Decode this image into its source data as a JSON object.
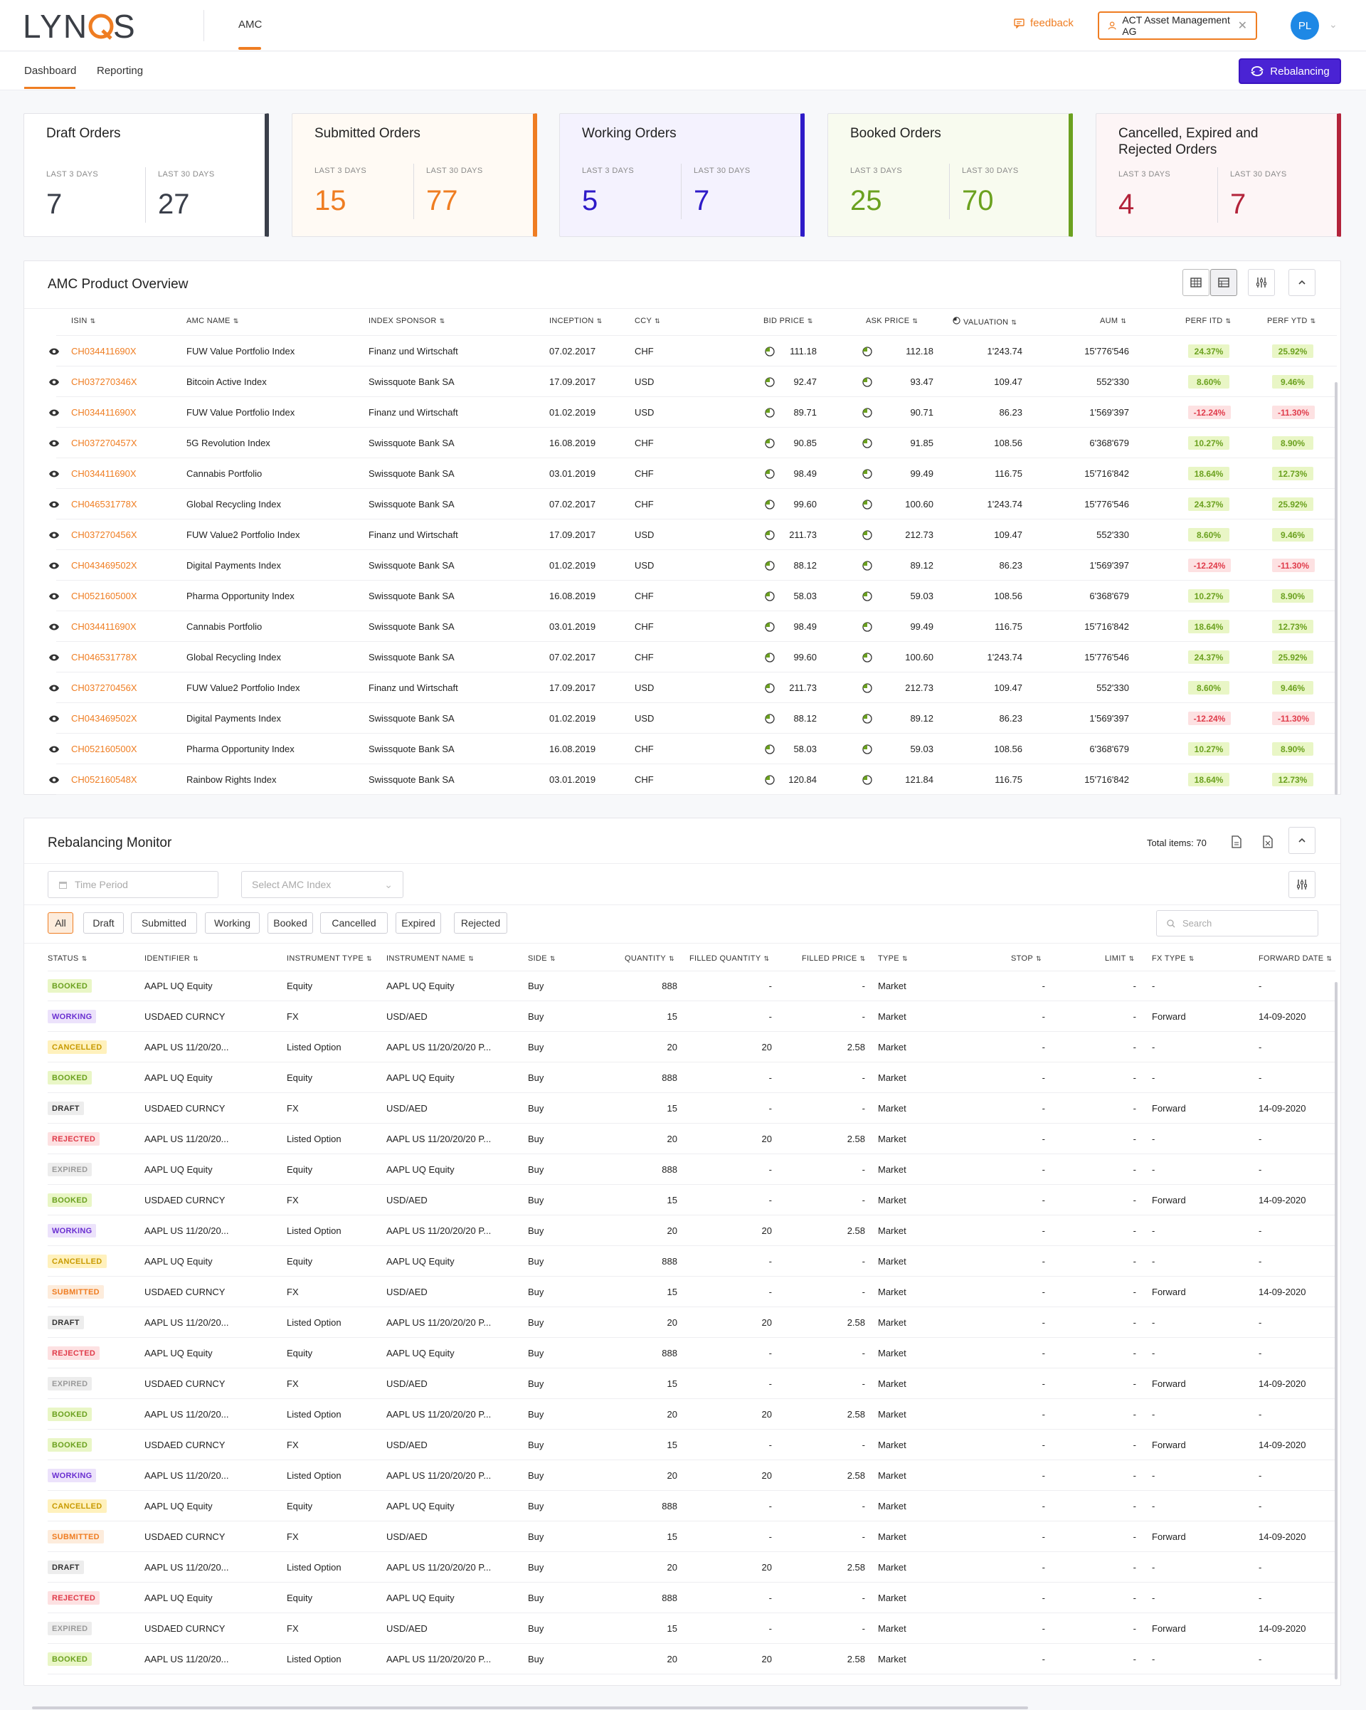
{
  "header": {
    "logo_text": "LYNQS",
    "nav": "AMC",
    "feedback": "feedback",
    "account": "ACT Asset Management AG",
    "avatar": "PL"
  },
  "subnav": {
    "tabs": [
      "Dashboard",
      "Reporting"
    ],
    "rebalancing_button": "Rebalancing"
  },
  "cards": [
    {
      "title": "Draft Orders",
      "label3": "LAST 3 DAYS",
      "label30": "LAST 30 DAYS",
      "v3": "7",
      "v30": "27",
      "color": "#3a3f4a"
    },
    {
      "title": "Submitted Orders",
      "label3": "LAST 3 DAYS",
      "label30": "LAST 30 DAYS",
      "v3": "15",
      "v30": "77",
      "color": "#ef7d22"
    },
    {
      "title": "Working Orders",
      "label3": "LAST 3 DAYS",
      "label30": "LAST 30 DAYS",
      "v3": "5",
      "v30": "7",
      "color": "#2e1bc8"
    },
    {
      "title": "Booked Orders",
      "label3": "LAST 3 DAYS",
      "label30": "LAST 30 DAYS",
      "v3": "25",
      "v30": "70",
      "color": "#6ba11f"
    },
    {
      "title": "Cancelled, Expired and Rejected Orders",
      "label3": "LAST 3 DAYS",
      "label30": "LAST 30 DAYS",
      "v3": "4",
      "v30": "7",
      "color": "#b3233a"
    }
  ],
  "overview": {
    "title": "AMC Product Overview",
    "columns": [
      "ISIN",
      "AMC NAME",
      "INDEX SPONSOR",
      "INCEPTION",
      "CCY",
      "BID PRICE",
      "ASK PRICE",
      "VALUATION",
      "AUM",
      "PERF ITD",
      "PERF YTD"
    ],
    "rows": [
      [
        "CH034411690X",
        "FUW Value Portfolio Index",
        "Finanz und Wirtschaft",
        "07.02.2017",
        "CHF",
        "111.18",
        "112.18",
        "1'243.74",
        "15'776'546",
        "24.37%",
        "25.92%"
      ],
      [
        "CH037270346X",
        "Bitcoin Active Index",
        "Swissquote Bank SA",
        "17.09.2017",
        "USD",
        "92.47",
        "93.47",
        "109.47",
        "552'330",
        "8.60%",
        "9.46%"
      ],
      [
        "CH034411690X",
        "FUW Value Portfolio Index",
        "Finanz und Wirtschaft",
        "01.02.2019",
        "USD",
        "89.71",
        "90.71",
        "86.23",
        "1'569'397",
        "-12.24%",
        "-11.30%"
      ],
      [
        "CH037270457X",
        "5G Revolution Index",
        "Swissquote Bank SA",
        "16.08.2019",
        "CHF",
        "90.85",
        "91.85",
        "108.56",
        "6'368'679",
        "10.27%",
        "8.90%"
      ],
      [
        "CH034411690X",
        "Cannabis Portfolio",
        "Swissquote Bank SA",
        "03.01.2019",
        "CHF",
        "98.49",
        "99.49",
        "116.75",
        "15'716'842",
        "18.64%",
        "12.73%"
      ],
      [
        "CH046531778X",
        "Global Recycling Index",
        "Swissquote Bank SA",
        "07.02.2017",
        "CHF",
        "99.60",
        "100.60",
        "1'243.74",
        "15'776'546",
        "24.37%",
        "25.92%"
      ],
      [
        "CH037270456X",
        "FUW Value2 Portfolio Index",
        "Finanz und Wirtschaft",
        "17.09.2017",
        "USD",
        "211.73",
        "212.73",
        "109.47",
        "552'330",
        "8.60%",
        "9.46%"
      ],
      [
        "CH043469502X",
        "Digital Payments Index",
        "Swissquote Bank SA",
        "01.02.2019",
        "USD",
        "88.12",
        "89.12",
        "86.23",
        "1'569'397",
        "-12.24%",
        "-11.30%"
      ],
      [
        "CH052160500X",
        "Pharma Opportunity Index",
        "Swissquote Bank SA",
        "16.08.2019",
        "CHF",
        "58.03",
        "59.03",
        "108.56",
        "6'368'679",
        "10.27%",
        "8.90%"
      ],
      [
        "CH034411690X",
        "Cannabis Portfolio",
        "Swissquote Bank SA",
        "03.01.2019",
        "CHF",
        "98.49",
        "99.49",
        "116.75",
        "15'716'842",
        "18.64%",
        "12.73%"
      ],
      [
        "CH046531778X",
        "Global Recycling Index",
        "Swissquote Bank SA",
        "07.02.2017",
        "CHF",
        "99.60",
        "100.60",
        "1'243.74",
        "15'776'546",
        "24.37%",
        "25.92%"
      ],
      [
        "CH037270456X",
        "FUW Value2 Portfolio Index",
        "Finanz und Wirtschaft",
        "17.09.2017",
        "USD",
        "211.73",
        "212.73",
        "109.47",
        "552'330",
        "8.60%",
        "9.46%"
      ],
      [
        "CH043469502X",
        "Digital Payments Index",
        "Swissquote Bank SA",
        "01.02.2019",
        "USD",
        "88.12",
        "89.12",
        "86.23",
        "1'569'397",
        "-12.24%",
        "-11.30%"
      ],
      [
        "CH052160500X",
        "Pharma Opportunity Index",
        "Swissquote Bank SA",
        "16.08.2019",
        "CHF",
        "58.03",
        "59.03",
        "108.56",
        "6'368'679",
        "10.27%",
        "8.90%"
      ],
      [
        "CH052160548X",
        "Rainbow Rights Index",
        "Swissquote Bank SA",
        "03.01.2019",
        "CHF",
        "120.84",
        "121.84",
        "116.75",
        "15'716'842",
        "18.64%",
        "12.73%"
      ]
    ]
  },
  "monitor": {
    "title": "Rebalancing Monitor",
    "total": "Total items: 70",
    "time_period_placeholder": "Time Period",
    "amc_index_placeholder": "Select AMC Index",
    "search_placeholder": "Search",
    "chips": [
      "All",
      "Draft",
      "Submitted",
      "Working",
      "Booked",
      "Cancelled",
      "Expired",
      "Rejected"
    ],
    "columns": [
      "STATUS",
      "IDENTIFIER",
      "INSTRUMENT TYPE",
      "INSTRUMENT NAME",
      "SIDE",
      "QUANTITY",
      "FILLED QUANTITY",
      "FILLED PRICE",
      "TYPE",
      "STOP",
      "LIMIT",
      "FX TYPE",
      "FORWARD DATE"
    ],
    "templates": {
      "A": [
        "AAPL UQ Equity",
        "Equity",
        "AAPL UQ Equity",
        "Buy",
        "888",
        "-",
        "-",
        "Market",
        "-",
        "-",
        "-",
        ""
      ],
      "B": [
        "USDAED CURNCY",
        "FX",
        "USD/AED",
        "Buy",
        "15",
        "-",
        "-",
        "Market",
        "-",
        "-",
        "Forward",
        "14-09-2020"
      ],
      "C": [
        "AAPL US 11/20/20...",
        "Listed Option",
        "AAPL US 11/20/20/20 P...",
        "Buy",
        "20",
        "20",
        "2.58",
        "Market",
        "-",
        "-",
        "-",
        ""
      ]
    },
    "rows": [
      [
        "BOOKED",
        "A"
      ],
      [
        "WORKING",
        "B"
      ],
      [
        "CANCELLED",
        "C"
      ],
      [
        "BOOKED",
        "A"
      ],
      [
        "DRAFT",
        "B"
      ],
      [
        "REJECTED",
        "C"
      ],
      [
        "EXPIRED",
        "A"
      ],
      [
        "BOOKED",
        "B"
      ],
      [
        "WORKING",
        "C"
      ],
      [
        "CANCELLED",
        "A"
      ],
      [
        "SUBMITTED",
        "B"
      ],
      [
        "DRAFT",
        "C"
      ],
      [
        "REJECTED",
        "A"
      ],
      [
        "EXPIRED",
        "B"
      ],
      [
        "BOOKED",
        "C"
      ],
      [
        "BOOKED",
        "B"
      ],
      [
        "WORKING",
        "C"
      ],
      [
        "CANCELLED",
        "A"
      ],
      [
        "SUBMITTED",
        "B"
      ],
      [
        "DRAFT",
        "C"
      ],
      [
        "REJECTED",
        "A"
      ],
      [
        "EXPIRED",
        "B"
      ],
      [
        "BOOKED",
        "C"
      ]
    ]
  }
}
